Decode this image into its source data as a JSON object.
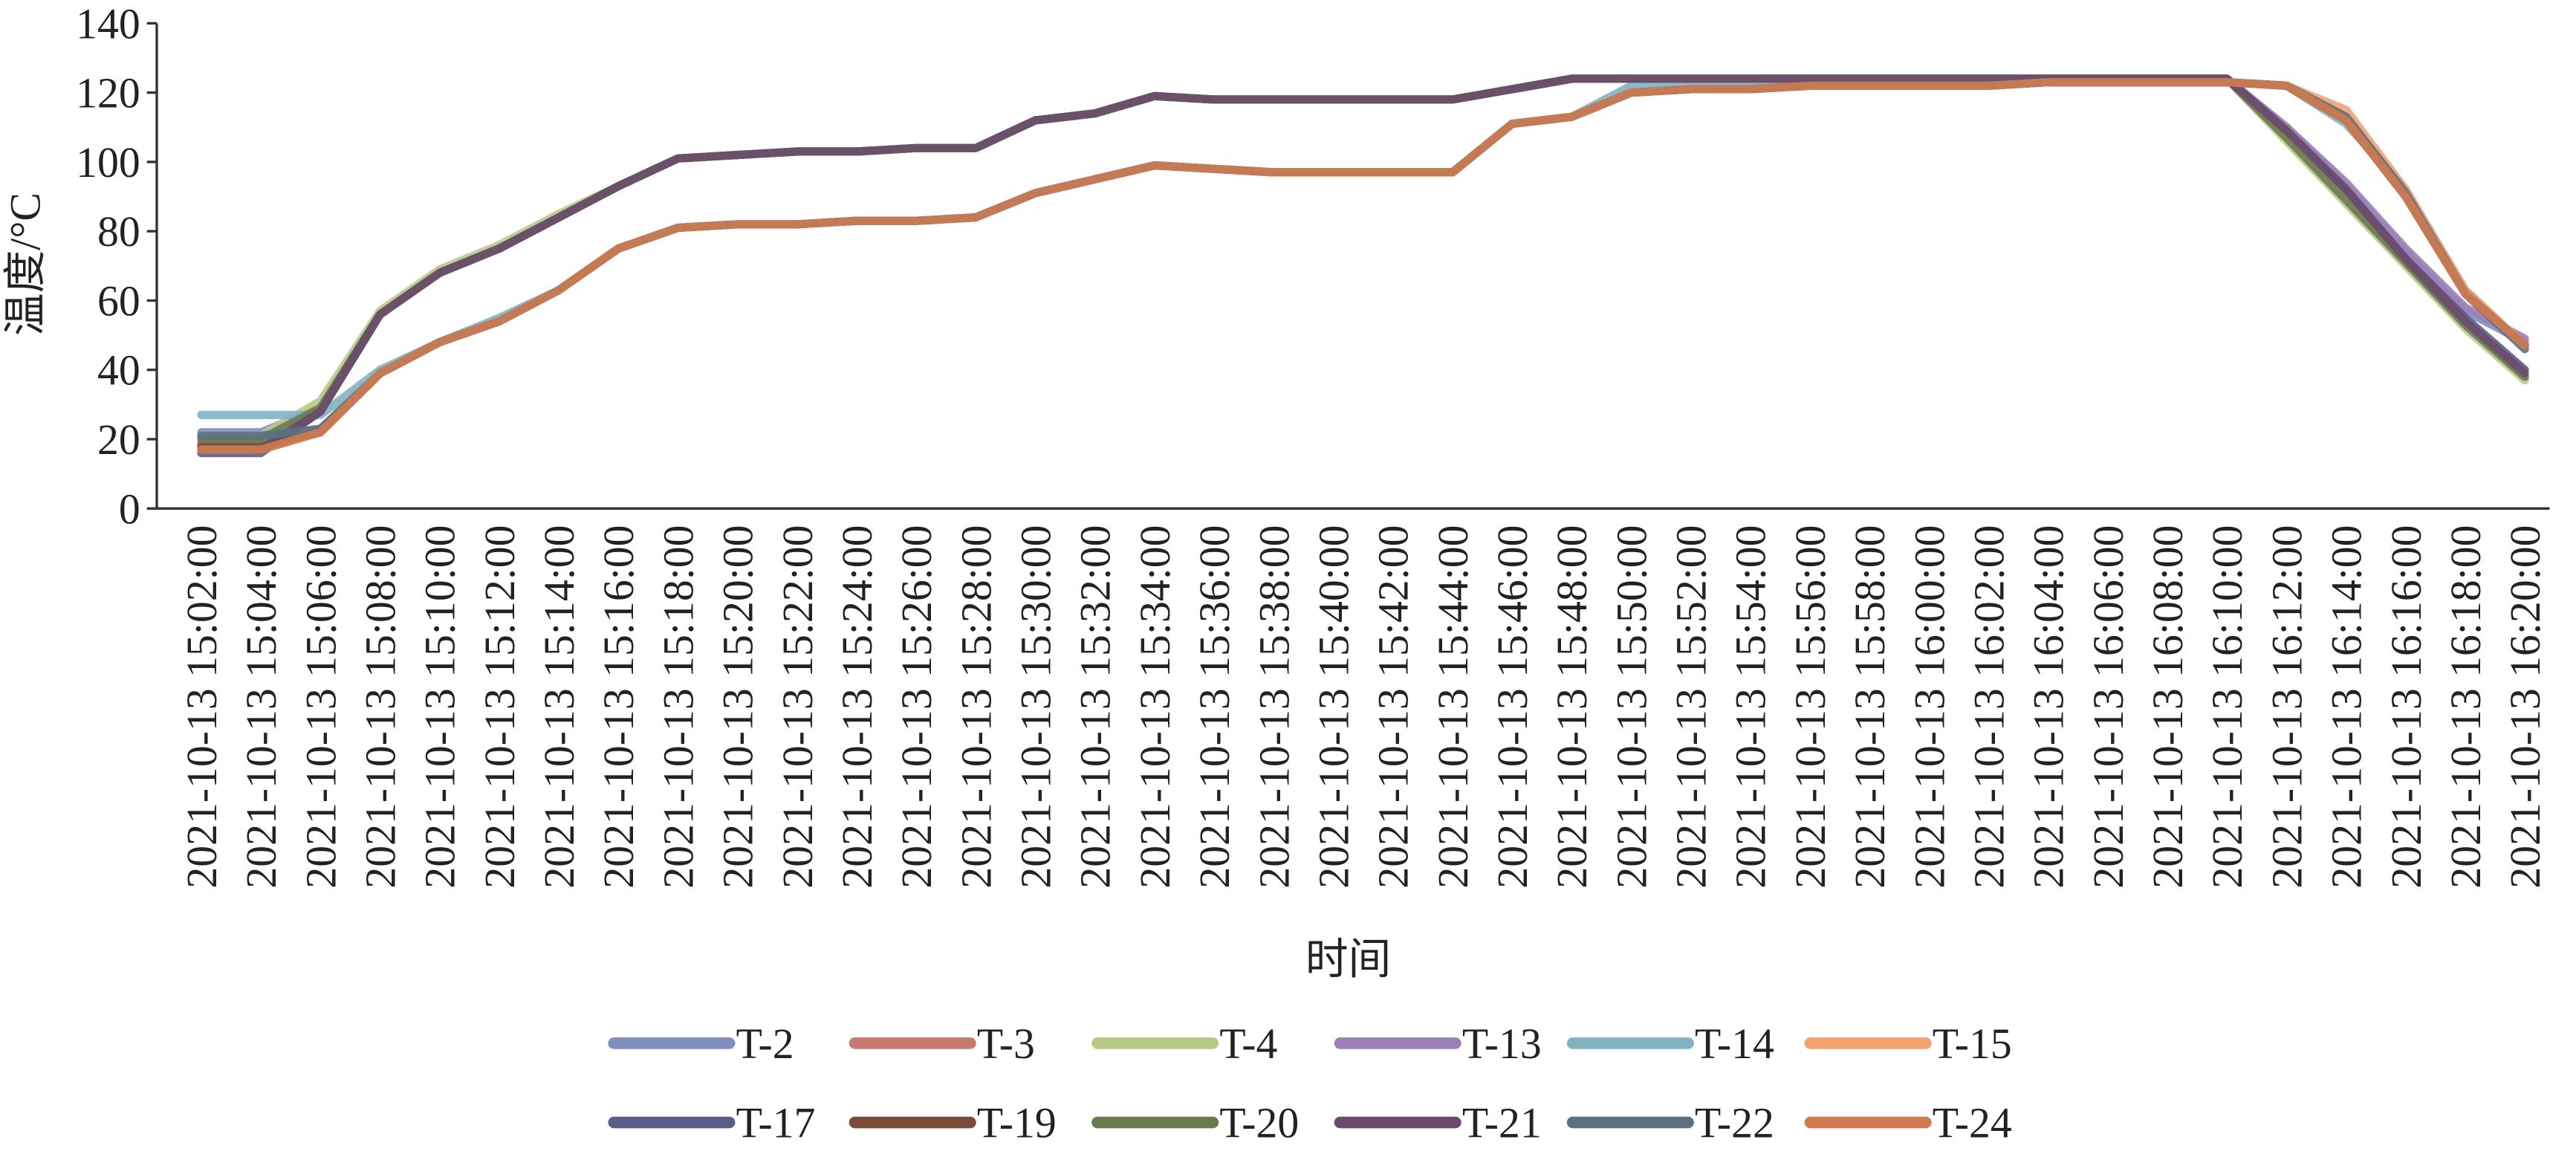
{
  "chart_data": {
    "type": "line",
    "y_label": "温度/°C",
    "x_label": "时间",
    "categories": [
      "2021-10-13 15:02:00",
      "2021-10-13 15:04:00",
      "2021-10-13 15:06:00",
      "2021-10-13 15:08:00",
      "2021-10-13 15:10:00",
      "2021-10-13 15:12:00",
      "2021-10-13 15:14:00",
      "2021-10-13 15:16:00",
      "2021-10-13 15:18:00",
      "2021-10-13 15:20:00",
      "2021-10-13 15:22:00",
      "2021-10-13 15:24:00",
      "2021-10-13 15:26:00",
      "2021-10-13 15:28:00",
      "2021-10-13 15:30:00",
      "2021-10-13 15:32:00",
      "2021-10-13 15:34:00",
      "2021-10-13 15:36:00",
      "2021-10-13 15:38:00",
      "2021-10-13 15:40:00",
      "2021-10-13 15:42:00",
      "2021-10-13 15:44:00",
      "2021-10-13 15:46:00",
      "2021-10-13 15:48:00",
      "2021-10-13 15:50:00",
      "2021-10-13 15:52:00",
      "2021-10-13 15:54:00",
      "2021-10-13 15:56:00",
      "2021-10-13 15:58:00",
      "2021-10-13 16:00:00",
      "2021-10-13 16:02:00",
      "2021-10-13 16:04:00",
      "2021-10-13 16:06:00",
      "2021-10-13 16:08:00",
      "2021-10-13 16:10:00",
      "2021-10-13 16:12:00",
      "2021-10-13 16:14:00",
      "2021-10-13 16:16:00",
      "2021-10-13 16:18:00",
      "2021-10-13 16:20:00"
    ],
    "series": [
      {
        "name": "T-2",
        "color": "#7f8fc2",
        "values": [
          22,
          22,
          29,
          56,
          68,
          75,
          84,
          93,
          101,
          102,
          103,
          103,
          104,
          104,
          112,
          114,
          119,
          118,
          118,
          118,
          118,
          118,
          121,
          124,
          124,
          124,
          124,
          124,
          124,
          124,
          124,
          124,
          124,
          124,
          124,
          110,
          93,
          74,
          57,
          48
        ]
      },
      {
        "name": "T-3",
        "color": "#c97a70",
        "values": [
          19,
          19,
          23,
          39,
          48,
          54,
          63,
          75,
          81,
          82,
          82,
          83,
          83,
          84,
          91,
          95,
          99,
          98,
          97,
          97,
          97,
          97,
          111,
          113,
          120,
          121,
          121,
          122,
          122,
          122,
          122,
          123,
          123,
          123,
          123,
          122,
          112,
          91,
          63,
          47
        ]
      },
      {
        "name": "T-4",
        "color": "#b8c985",
        "values": [
          21,
          21,
          31,
          57,
          69,
          76,
          85,
          93,
          101,
          102,
          103,
          103,
          104,
          104,
          112,
          114,
          119,
          118,
          118,
          118,
          118,
          118,
          121,
          124,
          124,
          124,
          124,
          124,
          124,
          124,
          124,
          124,
          124,
          124,
          124,
          106,
          88,
          70,
          52,
          37
        ]
      },
      {
        "name": "T-13",
        "color": "#9b80b8",
        "values": [
          18,
          18,
          28,
          56,
          68,
          75,
          84,
          93,
          101,
          102,
          103,
          103,
          104,
          104,
          112,
          114,
          119,
          118,
          118,
          118,
          118,
          118,
          121,
          124,
          124,
          124,
          124,
          124,
          124,
          124,
          124,
          124,
          124,
          124,
          124,
          110,
          94,
          75,
          58,
          49
        ]
      },
      {
        "name": "T-14",
        "color": "#80b2c2",
        "values": [
          27,
          27,
          27,
          40,
          48,
          55,
          63,
          75,
          81,
          82,
          82,
          83,
          83,
          84,
          91,
          95,
          99,
          98,
          97,
          97,
          97,
          97,
          111,
          113,
          122,
          122,
          122,
          122,
          122,
          122,
          122,
          123,
          123,
          123,
          123,
          122,
          111,
          92,
          63,
          47
        ]
      },
      {
        "name": "T-15",
        "color": "#f2a271",
        "values": [
          17,
          17,
          22,
          39,
          48,
          54,
          63,
          75,
          81,
          82,
          82,
          83,
          83,
          84,
          91,
          95,
          99,
          98,
          97,
          97,
          97,
          97,
          111,
          113,
          120,
          121,
          121,
          122,
          122,
          122,
          122,
          123,
          123,
          123,
          123,
          122,
          115,
          92,
          63,
          47
        ]
      },
      {
        "name": "T-17",
        "color": "#5b5b8a",
        "values": [
          16,
          16,
          28,
          56,
          68,
          75,
          84,
          93,
          101,
          102,
          103,
          103,
          104,
          104,
          112,
          114,
          119,
          118,
          118,
          118,
          118,
          118,
          121,
          124,
          124,
          124,
          124,
          124,
          124,
          124,
          124,
          124,
          124,
          124,
          124,
          109,
          92,
          72,
          55,
          40
        ]
      },
      {
        "name": "T-19",
        "color": "#7b4b38",
        "values": [
          18,
          18,
          22,
          39,
          48,
          54,
          63,
          75,
          81,
          82,
          82,
          83,
          83,
          84,
          91,
          95,
          99,
          98,
          97,
          97,
          97,
          97,
          111,
          113,
          120,
          121,
          121,
          122,
          122,
          122,
          122,
          123,
          123,
          123,
          123,
          122,
          112,
          90,
          62,
          47
        ]
      },
      {
        "name": "T-20",
        "color": "#6b7b50",
        "values": [
          20,
          20,
          29,
          56,
          68,
          75,
          84,
          93,
          101,
          102,
          103,
          103,
          104,
          104,
          112,
          114,
          119,
          118,
          118,
          118,
          118,
          118,
          121,
          124,
          124,
          124,
          124,
          124,
          124,
          124,
          124,
          124,
          124,
          124,
          124,
          107,
          89,
          71,
          53,
          38
        ]
      },
      {
        "name": "T-21",
        "color": "#6b4b6b",
        "values": [
          17,
          17,
          28,
          56,
          68,
          75,
          84,
          93,
          101,
          102,
          103,
          103,
          104,
          104,
          112,
          114,
          119,
          118,
          118,
          118,
          118,
          118,
          121,
          124,
          124,
          124,
          124,
          124,
          124,
          124,
          124,
          124,
          124,
          124,
          124,
          109,
          92,
          72,
          54,
          39
        ]
      },
      {
        "name": "T-22",
        "color": "#5b7182",
        "values": [
          21,
          21,
          23,
          39,
          48,
          54,
          63,
          75,
          81,
          82,
          82,
          83,
          83,
          84,
          91,
          95,
          99,
          98,
          97,
          97,
          97,
          97,
          111,
          113,
          120,
          121,
          121,
          122,
          122,
          122,
          122,
          123,
          123,
          123,
          123,
          122,
          113,
          91,
          62,
          46
        ]
      },
      {
        "name": "T-24",
        "color": "#d27b50",
        "values": [
          17,
          17,
          22,
          39,
          48,
          54,
          63,
          75,
          81,
          82,
          82,
          83,
          83,
          84,
          91,
          95,
          99,
          98,
          97,
          97,
          97,
          97,
          111,
          113,
          120,
          121,
          121,
          122,
          122,
          122,
          122,
          123,
          123,
          123,
          123,
          122,
          112,
          90,
          62,
          47
        ]
      }
    ],
    "ylim": [
      0,
      140
    ],
    "yticks": [
      0,
      20,
      40,
      60,
      80,
      100,
      120,
      140
    ]
  }
}
